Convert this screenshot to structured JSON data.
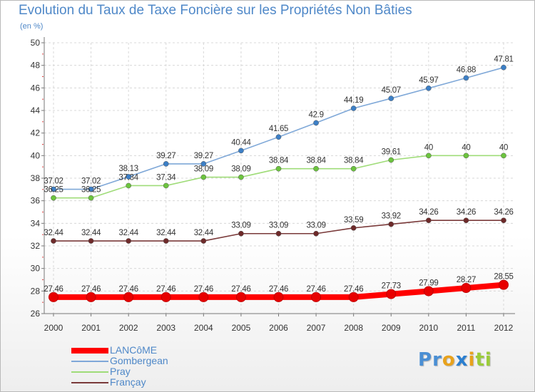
{
  "title": "Evolution du Taux de Taxe Foncière sur les Propriétés Non Bâties",
  "subtitle": "(en %)",
  "logo": {
    "letters": [
      "P",
      "r",
      "o",
      "x",
      "i",
      "t",
      "i"
    ],
    "colors": [
      "#4a8fd4",
      "#4a8fd4",
      "#e8a21c",
      "#2b7fd0",
      "#e8a21c",
      "#9bcc3a",
      "#9bcc3a"
    ]
  },
  "chart_data": {
    "type": "line",
    "x": [
      "2000",
      "2001",
      "2002",
      "2003",
      "2004",
      "2005",
      "2006",
      "2007",
      "2008",
      "2009",
      "2010",
      "2011",
      "2012"
    ],
    "ylim": [
      26,
      50
    ],
    "yticks": [
      "26",
      "28",
      "30",
      "32",
      "34",
      "36",
      "38",
      "40",
      "42",
      "44",
      "46",
      "48",
      "50"
    ],
    "grid": true,
    "legend_position": "bottom-left",
    "series": [
      {
        "name": "LANCôME",
        "color": "#ff0000",
        "marker_color": "#e80000",
        "emphasis": true,
        "values": [
          27.46,
          27.46,
          27.46,
          27.46,
          27.46,
          27.46,
          27.46,
          27.46,
          27.46,
          27.73,
          27.99,
          28.27,
          28.55
        ],
        "labels": [
          "27.46",
          "27.46",
          "27.46",
          "27.46",
          "27.46",
          "27.46",
          "27.46",
          "27.46",
          "27.46",
          "27.73",
          "27.99",
          "28.27",
          "28.55"
        ]
      },
      {
        "name": "Gombergean",
        "color": "#7fa8d8",
        "marker_color": "#3c7fc6",
        "values": [
          37.02,
          37.02,
          38.13,
          39.27,
          39.27,
          40.44,
          41.65,
          42.9,
          44.19,
          45.07,
          45.97,
          46.88,
          47.81
        ],
        "labels": [
          "37.02",
          "37.02",
          "38.13",
          "39.27",
          "39.27",
          "40.44",
          "41.65",
          "42.9",
          "44.19",
          "45.07",
          "45.97",
          "46.88",
          "47.81"
        ]
      },
      {
        "name": "Pray",
        "color": "#9fdc78",
        "marker_color": "#6cc43e",
        "values": [
          36.25,
          36.25,
          37.34,
          37.34,
          38.09,
          38.09,
          38.84,
          38.84,
          38.84,
          39.61,
          40,
          40,
          40
        ],
        "labels": [
          "36.25",
          "36.25",
          "37.34",
          "37.34",
          "38.09",
          "38.09",
          "38.84",
          "38.84",
          "38.84",
          "39.61",
          "40",
          "40",
          "40"
        ]
      },
      {
        "name": "Françay",
        "color": "#7a3a3a",
        "marker_color": "#6e2a2a",
        "values": [
          32.44,
          32.44,
          32.44,
          32.44,
          32.44,
          33.09,
          33.09,
          33.09,
          33.59,
          33.92,
          34.26,
          34.26,
          34.26
        ],
        "labels": [
          "32.44",
          "32.44",
          "32.44",
          "32.44",
          "32.44",
          "33.09",
          "33.09",
          "33.09",
          "33.59",
          "33.92",
          "34.26",
          "34.26",
          "34.26"
        ]
      }
    ]
  }
}
